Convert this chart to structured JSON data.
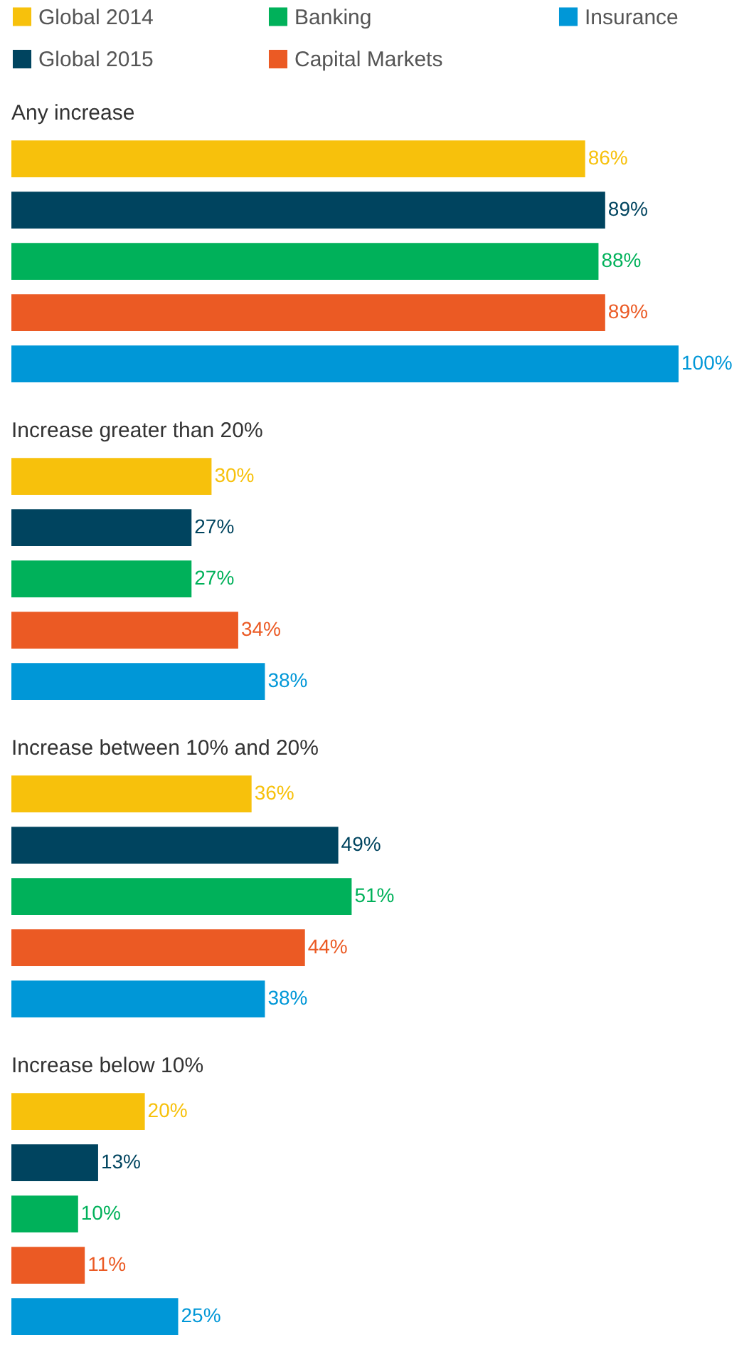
{
  "chart_data": {
    "type": "bar",
    "orientation": "horizontal",
    "legend": "top",
    "categories": [
      "Any increase",
      "Increase greater than 20%",
      "Increase between 10% and 20%",
      "Increase below 10%"
    ],
    "series": [
      {
        "name": "Global 2014",
        "color": "#f7c10c",
        "values": [
          86,
          30,
          36,
          20
        ],
        "value_labels": [
          "86%",
          "30%",
          "36%",
          "20%"
        ]
      },
      {
        "name": "Global 2015",
        "color": "#00445f",
        "values": [
          89,
          27,
          49,
          13
        ],
        "value_labels": [
          "89%",
          "27%",
          "49%",
          "13%"
        ]
      },
      {
        "name": "Banking",
        "color": "#00b15a",
        "values": [
          88,
          27,
          51,
          10
        ],
        "value_labels": [
          "88%",
          "27%",
          "51%",
          "10%"
        ]
      },
      {
        "name": "Capital Markets",
        "color": "#eb5a24",
        "values": [
          89,
          34,
          44,
          11
        ],
        "value_labels": [
          "89%",
          "34%",
          "44%",
          "11%"
        ]
      },
      {
        "name": "Insurance",
        "color": "#0097d7",
        "values": [
          100,
          38,
          38,
          25
        ],
        "value_labels": [
          "100%",
          "38%",
          "38%",
          "25%"
        ]
      }
    ]
  }
}
